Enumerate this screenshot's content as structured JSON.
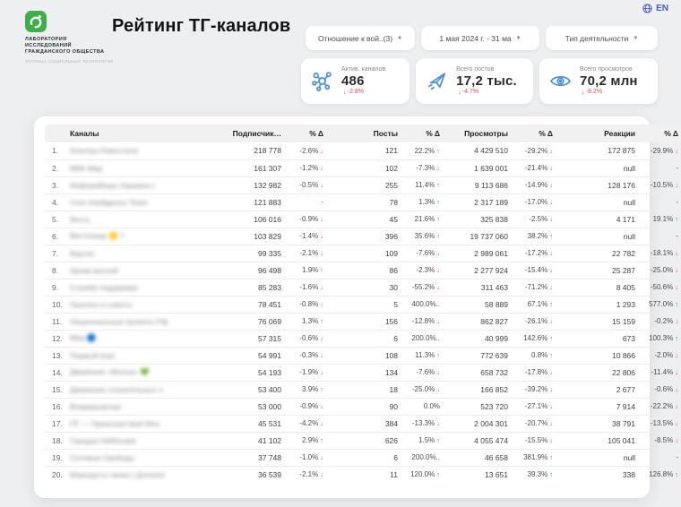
{
  "lang": {
    "label": "EN"
  },
  "logo": {
    "org_name": "ЛАБОРАТОРИЯ\nИССЛЕДОВАНИЙ\nГРАЖДАНСКОГО ОБЩЕСТВА",
    "org_sub": "ТЕПЛИЦА СОЦИАЛЬНЫХ ТЕХНОЛОГИЙ"
  },
  "header": {
    "title": "Рейтинг ТГ-каналов"
  },
  "filters": [
    {
      "label": "Отношение к вой..(3)"
    },
    {
      "label": "1 мая 2024 г. - 31 ма"
    },
    {
      "label": "Тип деятельности"
    }
  ],
  "stats": [
    {
      "icon": "network-icon",
      "label": "Актив. каналов",
      "value": "486",
      "delta": "-2.8%",
      "direction": "down"
    },
    {
      "icon": "paper-plane-icon",
      "label": "Всего постов",
      "value": "17,2 тыс.",
      "delta": "-4.7%",
      "direction": "down"
    },
    {
      "icon": "eye-icon",
      "label": "Всего просмотров",
      "value": "70,2 млн",
      "delta": "-8.2%",
      "direction": "down"
    }
  ],
  "colors": {
    "accent_green": "#3fae49",
    "icon_blue": "#4a90d9",
    "up_green": "#2da44e",
    "down_red": "#e5484d",
    "lang_blue": "#4a5ac5"
  },
  "table": {
    "columns": [
      "Каналы",
      "Подписчик…",
      "% Δ",
      "Посты",
      "% Δ",
      "Просмотры",
      "% Δ",
      "Реакции",
      "% Δ"
    ],
    "rows": [
      {
        "rank": "1.",
        "blurred_placeholder": "Агентра Новостели",
        "subs": "218 778",
        "subs_d": "-2.6%",
        "subs_dir": "down",
        "posts": "121",
        "posts_d": "22.2%",
        "posts_dir": "up",
        "views": "4 429 510",
        "views_d": "-29.2%",
        "views_dir": "down",
        "react": "172 875",
        "react_d": "-29.9%",
        "react_dir": "down"
      },
      {
        "rank": "2.",
        "blurred_placeholder": "МБК Мир",
        "subs": "161 307",
        "subs_d": "-1.2%",
        "subs_dir": "down",
        "posts": "102",
        "posts_d": "-7.3%",
        "posts_dir": "down",
        "views": "1 639 001",
        "views_d": "-21.4%",
        "views_dir": "down",
        "react": "null",
        "react_d": "-",
        "react_dir": "none"
      },
      {
        "rank": "3.",
        "blurred_placeholder": "Информбюро Украина с",
        "subs": "132 982",
        "subs_d": "-0.5%",
        "subs_dir": "down",
        "posts": "255",
        "posts_d": "11.4%",
        "posts_dir": "up",
        "views": "9 113 686",
        "views_d": "-14.9%",
        "views_dir": "down",
        "react": "128 176",
        "react_d": "-10.5%",
        "react_dir": "down"
      },
      {
        "rank": "4.",
        "blurred_placeholder": "Civic Intelligence Team",
        "subs": "121 883",
        "subs_d": "-",
        "subs_dir": "none",
        "posts": "78",
        "posts_d": "1.3%",
        "posts_dir": "up",
        "views": "2 317 189",
        "views_d": "-17.0%",
        "views_dir": "down",
        "react": "null",
        "react_d": "-",
        "react_dir": "none"
      },
      {
        "rank": "5.",
        "blurred_placeholder": "Весть",
        "subs": "106 016",
        "subs_d": "-0.9%",
        "subs_dir": "down",
        "posts": "45",
        "posts_d": "21.6%",
        "posts_dir": "up",
        "views": "325 838",
        "views_d": "-2.5%",
        "views_dir": "down",
        "react": "4 171",
        "react_d": "19.1%",
        "react_dir": "up"
      },
      {
        "rank": "6.",
        "blurred_placeholder": "Вестоград 🟡 7",
        "subs": "103 829",
        "subs_d": "-1.4%",
        "subs_dir": "down",
        "posts": "396",
        "posts_d": "35.6%",
        "posts_dir": "up",
        "views": "19 737 060",
        "views_d": "38.2%",
        "views_dir": "up",
        "react": "null",
        "react_d": "-",
        "react_dir": "none"
      },
      {
        "rank": "7.",
        "blurred_placeholder": "Вартис",
        "subs": "99 335",
        "subs_d": "-2.1%",
        "subs_dir": "down",
        "posts": "109",
        "posts_d": "-7.6%",
        "posts_dir": "down",
        "views": "2 989 061",
        "views_d": "-17.2%",
        "views_dir": "down",
        "react": "22 782",
        "react_d": "-18.1%",
        "react_dir": "down"
      },
      {
        "rank": "8.",
        "blurred_placeholder": "Архив весной",
        "subs": "96 498",
        "subs_d": "1.9%",
        "subs_dir": "up",
        "posts": "86",
        "posts_d": "-2.3%",
        "posts_dir": "down",
        "views": "2 277 924",
        "views_d": "-15.4%",
        "views_dir": "down",
        "react": "25 287",
        "react_d": "-25.0%",
        "react_dir": "down"
      },
      {
        "rank": "9.",
        "blurred_placeholder": "Служба поддержки",
        "subs": "85 283",
        "subs_d": "-1.6%",
        "subs_dir": "down",
        "posts": "30",
        "posts_d": "-55.2%",
        "posts_dir": "down",
        "views": "311 463",
        "views_d": "-71.2%",
        "views_dir": "down",
        "react": "8 405",
        "react_d": "-50.6%",
        "react_dir": "down"
      },
      {
        "rank": "10.",
        "blurred_placeholder": "Прогноз и советы",
        "subs": "78 451",
        "subs_d": "-0.8%",
        "subs_dir": "down",
        "posts": "5",
        "posts_d": "400.0%..",
        "posts_dir": "none",
        "views": "58 889",
        "views_d": "67.1%",
        "views_dir": "up",
        "react": "1 293",
        "react_d": "577.0%",
        "react_dir": "up"
      },
      {
        "rank": "11.",
        "blurred_placeholder": "Национальные проекты Рф",
        "subs": "76 069",
        "subs_d": "1.3%",
        "subs_dir": "up",
        "posts": "156",
        "posts_d": "-12.8%",
        "posts_dir": "down",
        "views": "862 827",
        "views_d": "-26.1%",
        "views_dir": "down",
        "react": "15 159",
        "react_d": "-0.2%",
        "react_dir": "down"
      },
      {
        "rank": "12.",
        "blurred_placeholder": "Мир 🔵",
        "subs": "57 315",
        "subs_d": "-0.6%",
        "subs_dir": "down",
        "posts": "6",
        "posts_d": "200.0%..",
        "posts_dir": "none",
        "views": "40 999",
        "views_d": "142.6%",
        "views_dir": "up",
        "react": "673",
        "react_d": "100.3%",
        "react_dir": "up"
      },
      {
        "rank": "13.",
        "blurred_placeholder": "Первый порт",
        "subs": "54 991",
        "subs_d": "-0.3%",
        "subs_dir": "down",
        "posts": "108",
        "posts_d": "11.3%",
        "posts_dir": "up",
        "views": "772 639",
        "views_d": "0.8%",
        "views_dir": "up",
        "react": "10 866",
        "react_d": "-2.0%",
        "react_dir": "down"
      },
      {
        "rank": "14.",
        "blurred_placeholder": "Движение «Волна» 💚",
        "subs": "54 193",
        "subs_d": "-1.9%",
        "subs_dir": "down",
        "posts": "134",
        "posts_d": "-7.6%",
        "posts_dir": "down",
        "views": "658 732",
        "views_d": "-17.8%",
        "views_dir": "down",
        "react": "22 806",
        "react_d": "-11.4%",
        "react_dir": "down"
      },
      {
        "rank": "15.",
        "blurred_placeholder": "Движение сознательных л",
        "subs": "53 400",
        "subs_d": "3.9%",
        "subs_dir": "up",
        "posts": "18",
        "posts_d": "-25.0%",
        "posts_dir": "down",
        "views": "166 852",
        "views_d": "-39.2%",
        "views_dir": "down",
        "react": "2 677",
        "react_d": "-0.6%",
        "react_dir": "down"
      },
      {
        "rank": "16.",
        "blurred_placeholder": "Впередсмотря",
        "subs": "53 000",
        "subs_d": "-0.9%",
        "subs_dir": "down",
        "posts": "90",
        "posts_d": "0.0%",
        "posts_dir": "none",
        "views": "523 720",
        "views_d": "-27.1%",
        "views_dir": "down",
        "react": "7 914",
        "react_d": "-22.2%",
        "react_dir": "down"
      },
      {
        "rank": "17.",
        "blurred_placeholder": "ПГ — Происшествия Мос",
        "subs": "45 531",
        "subs_d": "-4.2%",
        "subs_dir": "down",
        "posts": "384",
        "posts_d": "-13.3%",
        "posts_dir": "down",
        "views": "2 004 301",
        "views_d": "-20.7%",
        "views_dir": "down",
        "react": "38 791",
        "react_d": "-13.5%",
        "react_dir": "down"
      },
      {
        "rank": "18.",
        "blurred_placeholder": "Городок НеМосква",
        "subs": "41 102",
        "subs_d": "2.9%",
        "subs_dir": "up",
        "posts": "626",
        "posts_d": "1.5%",
        "posts_dir": "up",
        "views": "4 055 474",
        "views_d": "-15.5%",
        "views_dir": "down",
        "react": "105 041",
        "react_d": "-8.5%",
        "react_dir": "down"
      },
      {
        "rank": "19.",
        "blurred_placeholder": "Сетевые Свободы",
        "subs": "37 748",
        "subs_d": "-1.0%",
        "subs_dir": "down",
        "posts": "6",
        "posts_d": "200.0%..",
        "posts_dir": "none",
        "views": "46 658",
        "views_d": "381.9%",
        "views_dir": "up",
        "react": "null",
        "react_d": "-",
        "react_dir": "none"
      },
      {
        "rank": "20.",
        "blurred_placeholder": "Маршруты своих | Дополог",
        "subs": "36 539",
        "subs_d": "-2.1%",
        "subs_dir": "down",
        "posts": "11",
        "posts_d": "120.0%",
        "posts_dir": "up",
        "views": "13 651",
        "views_d": "39.3%",
        "views_dir": "up",
        "react": "338",
        "react_d": "126.8%",
        "react_dir": "up"
      }
    ]
  }
}
